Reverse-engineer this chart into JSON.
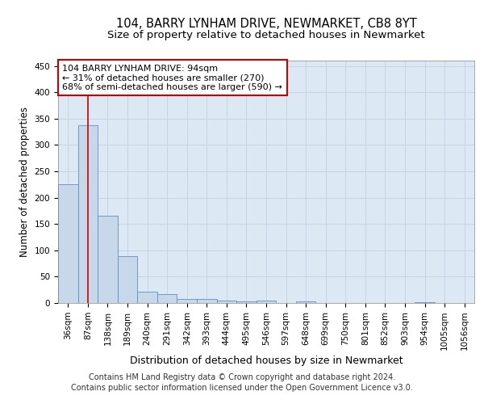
{
  "title_line1": "104, BARRY LYNHAM DRIVE, NEWMARKET, CB8 8YT",
  "title_line2": "Size of property relative to detached houses in Newmarket",
  "xlabel": "Distribution of detached houses by size in Newmarket",
  "ylabel": "Number of detached properties",
  "categories": [
    "36sqm",
    "87sqm",
    "138sqm",
    "189sqm",
    "240sqm",
    "291sqm",
    "342sqm",
    "393sqm",
    "444sqm",
    "495sqm",
    "546sqm",
    "597sqm",
    "648sqm",
    "699sqm",
    "750sqm",
    "801sqm",
    "852sqm",
    "903sqm",
    "954sqm",
    "1005sqm",
    "1056sqm"
  ],
  "values": [
    225,
    338,
    165,
    89,
    22,
    17,
    7,
    7,
    5,
    3,
    4,
    0,
    3,
    0,
    0,
    0,
    0,
    0,
    2,
    0,
    0
  ],
  "bar_color": "#c8d8eb",
  "bar_edge_color": "#6090c0",
  "vline_x": 1,
  "vline_color": "#cc0000",
  "annotation_text": "104 BARRY LYNHAM DRIVE: 94sqm\n← 31% of detached houses are smaller (270)\n68% of semi-detached houses are larger (590) →",
  "annotation_box_facecolor": "#ffffff",
  "annotation_box_edgecolor": "#cc0000",
  "ylim_max": 460,
  "yticks": [
    0,
    50,
    100,
    150,
    200,
    250,
    300,
    350,
    400,
    450
  ],
  "grid_color": "#c5d5e5",
  "plot_bgcolor": "#dce8f4",
  "footer_line1": "Contains HM Land Registry data © Crown copyright and database right 2024.",
  "footer_line2": "Contains public sector information licensed under the Open Government Licence v3.0.",
  "title1_fontsize": 10.5,
  "title2_fontsize": 9.5,
  "ylabel_fontsize": 8.5,
  "xlabel_fontsize": 9,
  "tick_fontsize": 7.5,
  "annot_fontsize": 8,
  "footer_fontsize": 7
}
